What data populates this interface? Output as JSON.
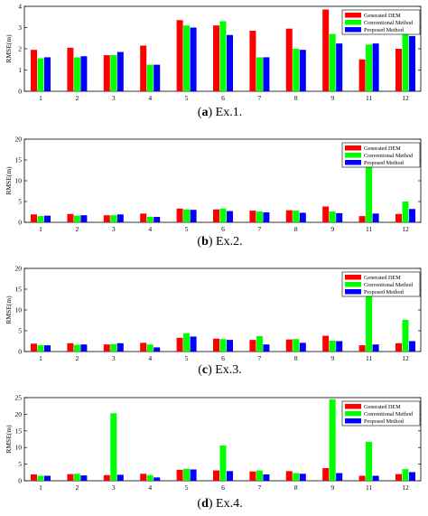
{
  "colors": {
    "generated": "#ff0000",
    "conventional": "#00ff00",
    "proposed": "#0000ff",
    "axis": "#000000"
  },
  "legend_labels": [
    "Generated DEM",
    "Conventional Method",
    "Proposed Method"
  ],
  "chart_data": [
    {
      "type": "bar",
      "caption_letter": "a",
      "caption_text": " Ex.1.",
      "ylabel": "RMSE(m)",
      "xlabel": "",
      "categories": [
        "1",
        "2",
        "3",
        "4",
        "5",
        "6",
        "7",
        "8",
        "9",
        "11",
        "12"
      ],
      "ylim": [
        0,
        4
      ],
      "yticks": [
        0,
        1,
        2,
        3,
        4
      ],
      "legend": "top-right",
      "grid": false,
      "series": [
        {
          "name": "Generated DEM",
          "values": [
            1.95,
            2.05,
            1.7,
            2.15,
            3.35,
            3.1,
            2.85,
            2.95,
            3.85,
            1.5,
            2.0
          ]
        },
        {
          "name": "Conventional Method",
          "values": [
            1.55,
            1.6,
            1.7,
            1.25,
            3.1,
            3.3,
            1.6,
            2.0,
            2.7,
            2.2,
            3.0
          ]
        },
        {
          "name": "Proposed Method",
          "values": [
            1.6,
            1.65,
            1.85,
            1.25,
            3.0,
            2.65,
            1.6,
            1.95,
            2.25,
            2.25,
            2.6
          ]
        }
      ]
    },
    {
      "type": "bar",
      "caption_letter": "b",
      "caption_text": " Ex.2.",
      "ylabel": "RMSE(m)",
      "xlabel": "",
      "categories": [
        "1",
        "2",
        "3",
        "4",
        "5",
        "6",
        "7",
        "8",
        "9",
        "11",
        "12"
      ],
      "ylim": [
        0,
        20
      ],
      "yticks": [
        0,
        5,
        10,
        15,
        20
      ],
      "legend": "top-right",
      "grid": false,
      "series": [
        {
          "name": "Generated DEM",
          "values": [
            1.9,
            2.0,
            1.7,
            2.1,
            3.3,
            3.1,
            2.8,
            2.9,
            3.8,
            1.5,
            2.0
          ]
        },
        {
          "name": "Conventional Method",
          "values": [
            1.5,
            1.6,
            1.7,
            1.3,
            3.1,
            3.3,
            2.6,
            2.8,
            2.6,
            15.2,
            5.0
          ]
        },
        {
          "name": "Proposed Method",
          "values": [
            1.6,
            1.7,
            1.9,
            1.3,
            3.0,
            2.7,
            2.4,
            2.3,
            2.2,
            2.1,
            3.2
          ]
        }
      ]
    },
    {
      "type": "bar",
      "caption_letter": "c",
      "caption_text": " Ex.3.",
      "ylabel": "RMSE(m)",
      "xlabel": "",
      "categories": [
        "1",
        "2",
        "3",
        "4",
        "5",
        "6",
        "7",
        "8",
        "9",
        "11",
        "12"
      ],
      "ylim": [
        0,
        20
      ],
      "yticks": [
        0,
        5,
        10,
        15,
        20
      ],
      "legend": "top-right",
      "grid": false,
      "series": [
        {
          "name": "Generated DEM",
          "values": [
            1.9,
            2.0,
            1.7,
            2.1,
            3.3,
            3.1,
            2.8,
            2.9,
            3.8,
            1.5,
            2.0
          ]
        },
        {
          "name": "Conventional Method",
          "values": [
            1.5,
            1.6,
            1.8,
            1.7,
            4.4,
            3.0,
            3.7,
            3.0,
            2.6,
            17.5,
            7.6
          ]
        },
        {
          "name": "Proposed Method",
          "values": [
            1.5,
            1.7,
            2.0,
            1.0,
            3.6,
            2.8,
            1.7,
            2.1,
            2.5,
            1.7,
            2.5
          ]
        }
      ]
    },
    {
      "type": "bar",
      "caption_letter": "d",
      "caption_text": " Ex.4.",
      "ylabel": "RMSE(m)",
      "xlabel": "",
      "categories": [
        "1",
        "2",
        "3",
        "4",
        "5",
        "6",
        "7",
        "8",
        "9",
        "11",
        "12"
      ],
      "ylim": [
        0,
        25
      ],
      "yticks": [
        0,
        5,
        10,
        15,
        20,
        25
      ],
      "legend": "top-right",
      "grid": false,
      "series": [
        {
          "name": "Generated DEM",
          "values": [
            1.9,
            2.0,
            1.7,
            2.1,
            3.3,
            3.1,
            2.8,
            2.9,
            3.8,
            1.5,
            2.0
          ]
        },
        {
          "name": "Conventional Method",
          "values": [
            1.5,
            2.1,
            20.3,
            1.7,
            3.6,
            10.6,
            3.1,
            2.3,
            24.5,
            11.7,
            3.5
          ]
        },
        {
          "name": "Proposed Method",
          "values": [
            1.5,
            1.6,
            1.8,
            1.0,
            3.4,
            2.9,
            1.9,
            2.1,
            2.3,
            1.5,
            2.6
          ]
        }
      ]
    }
  ]
}
